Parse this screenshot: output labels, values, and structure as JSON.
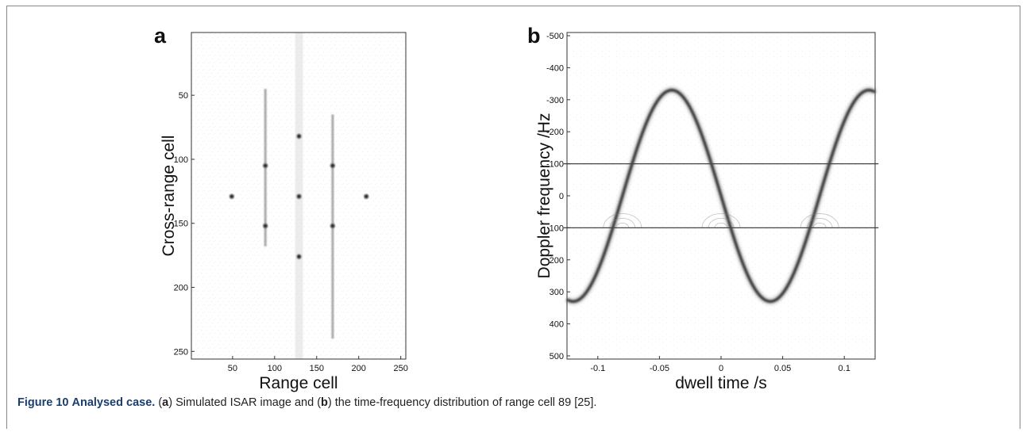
{
  "caption": {
    "figure_number": "Figure 10",
    "figure_title": "Analysed case.",
    "part_a_open": " (",
    "part_a_letter": "a",
    "part_a_text": ") Simulated ISAR image and (",
    "part_b_letter": "b",
    "part_b_text": ") the time-frequency distribution of range cell 89 [25]."
  },
  "chart_data": [
    {
      "panel": "a",
      "type": "scatter",
      "xlabel": "Range cell",
      "ylabel": "Cross-range cell",
      "xlim": [
        1,
        256
      ],
      "ylim": [
        256,
        1
      ],
      "y_axis_inverted": true,
      "xticks": [
        50,
        100,
        150,
        200,
        250
      ],
      "yticks": [
        50,
        100,
        150,
        200,
        250
      ],
      "xtick_labels": [
        "50",
        "100",
        "150",
        "200",
        "250"
      ],
      "ytick_labels": [
        "50",
        "100",
        "150",
        "200",
        "250"
      ],
      "grid": false,
      "colormap": "grayscale inverted",
      "points": [
        {
          "x": 49,
          "y": 129
        },
        {
          "x": 89,
          "y": 105
        },
        {
          "x": 89,
          "y": 152
        },
        {
          "x": 129,
          "y": 82
        },
        {
          "x": 129,
          "y": 129
        },
        {
          "x": 129,
          "y": 176
        },
        {
          "x": 169,
          "y": 105
        },
        {
          "x": 169,
          "y": 152
        },
        {
          "x": 209,
          "y": 129
        }
      ],
      "streaks": [
        {
          "x": 89,
          "y_from": 45,
          "y_to": 168
        },
        {
          "x": 129,
          "y_from": 1,
          "y_to": 256
        },
        {
          "x": 169,
          "y_from": 65,
          "y_to": 240
        }
      ]
    },
    {
      "panel": "b",
      "type": "line",
      "xlabel": "dwell time /s",
      "ylabel": "Doppler frequency /Hz",
      "xlim": [
        -0.125,
        0.125
      ],
      "ylim": [
        -510,
        510
      ],
      "y_axis_inverted": true,
      "xticks": [
        -0.1,
        -0.05,
        0,
        0.05,
        0.1
      ],
      "xtick_labels": [
        "-0.1",
        "-0.05",
        "0",
        "0.05",
        "0.1"
      ],
      "yticks": [
        -500,
        -400,
        -300,
        -200,
        -100,
        0,
        100,
        200,
        300,
        400,
        500
      ],
      "ytick_labels": [
        "-500",
        "-400",
        "-300",
        "-200",
        "-100",
        "0",
        "100",
        "200",
        "300",
        "400",
        "500"
      ],
      "grid": false,
      "colormap": "grayscale inverted",
      "series": [
        {
          "kind": "sinusoid",
          "amplitude": 330,
          "period": 0.16,
          "peak_time": 0.04,
          "points": [
            [
              -0.12,
              330
            ],
            [
              -0.08,
              0
            ],
            [
              -0.04,
              -330
            ],
            [
              0,
              0
            ],
            [
              0.04,
              330
            ],
            [
              0.08,
              0
            ],
            [
              0.12,
              -330
            ]
          ]
        },
        {
          "kind": "constant",
          "points": [
            [
              -0.12,
              -100
            ],
            [
              0.12,
              -100
            ]
          ]
        },
        {
          "kind": "constant",
          "points": [
            [
              -0.12,
              100
            ],
            [
              0.12,
              100
            ]
          ]
        }
      ]
    }
  ]
}
